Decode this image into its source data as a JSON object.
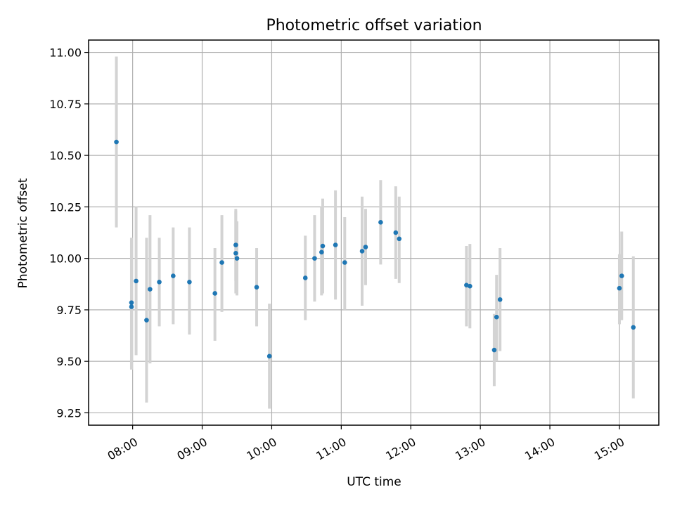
{
  "chart_data": {
    "type": "scatter",
    "title": "Photometric offset variation",
    "xlabel": "UTC time",
    "ylabel": "Photometric offset",
    "x_format": "HH:MM",
    "xlim": [
      "07:22",
      "15:34"
    ],
    "ylim": [
      9.19,
      11.06
    ],
    "x_ticks": [
      "08:00",
      "09:00",
      "10:00",
      "11:00",
      "12:00",
      "13:00",
      "14:00",
      "15:00"
    ],
    "y_ticks": [
      9.25,
      9.5,
      9.75,
      10.0,
      10.25,
      10.5,
      10.75,
      11.0
    ],
    "grid": true,
    "marker_color": "#1f77b4",
    "errorbar_color": "#d3d3d3",
    "points": [
      {
        "x": "07:46",
        "y": 10.565,
        "err_low": 10.15,
        "err_high": 10.98
      },
      {
        "x": "07:59",
        "y": 9.785,
        "err_low": 9.46,
        "err_high": 10.1
      },
      {
        "x": "07:59",
        "y": 9.765,
        "err_low": 9.5,
        "err_high": 10.05
      },
      {
        "x": "08:03",
        "y": 9.89,
        "err_low": 9.53,
        "err_high": 10.25
      },
      {
        "x": "08:12",
        "y": 9.7,
        "err_low": 9.3,
        "err_high": 10.1
      },
      {
        "x": "08:15",
        "y": 9.85,
        "err_low": 9.49,
        "err_high": 10.21
      },
      {
        "x": "08:23",
        "y": 9.885,
        "err_low": 9.67,
        "err_high": 10.1
      },
      {
        "x": "08:35",
        "y": 9.915,
        "err_low": 9.68,
        "err_high": 10.15
      },
      {
        "x": "08:49",
        "y": 9.885,
        "err_low": 9.63,
        "err_high": 10.15
      },
      {
        "x": "09:11",
        "y": 9.83,
        "err_low": 9.6,
        "err_high": 10.05
      },
      {
        "x": "09:17",
        "y": 9.98,
        "err_low": 9.74,
        "err_high": 10.21
      },
      {
        "x": "09:29",
        "y": 10.065,
        "err_low": 9.89,
        "err_high": 10.24
      },
      {
        "x": "09:29",
        "y": 10.025,
        "err_low": 9.83,
        "err_high": 10.23
      },
      {
        "x": "09:30",
        "y": 10.0,
        "err_low": 9.82,
        "err_high": 10.18
      },
      {
        "x": "09:47",
        "y": 9.86,
        "err_low": 9.67,
        "err_high": 10.05
      },
      {
        "x": "09:58",
        "y": 9.525,
        "err_low": 9.27,
        "err_high": 9.78
      },
      {
        "x": "10:29",
        "y": 9.905,
        "err_low": 9.7,
        "err_high": 10.11
      },
      {
        "x": "10:37",
        "y": 10.0,
        "err_low": 9.79,
        "err_high": 10.21
      },
      {
        "x": "10:43",
        "y": 10.03,
        "err_low": 9.82,
        "err_high": 10.25
      },
      {
        "x": "10:44",
        "y": 10.06,
        "err_low": 9.83,
        "err_high": 10.29
      },
      {
        "x": "10:55",
        "y": 10.065,
        "err_low": 9.8,
        "err_high": 10.33
      },
      {
        "x": "11:03",
        "y": 9.98,
        "err_low": 9.75,
        "err_high": 10.2
      },
      {
        "x": "11:18",
        "y": 10.035,
        "err_low": 9.77,
        "err_high": 10.3
      },
      {
        "x": "11:21",
        "y": 10.055,
        "err_low": 9.87,
        "err_high": 10.24
      },
      {
        "x": "11:34",
        "y": 10.175,
        "err_low": 9.97,
        "err_high": 10.38
      },
      {
        "x": "11:47",
        "y": 10.125,
        "err_low": 9.9,
        "err_high": 10.35
      },
      {
        "x": "11:50",
        "y": 10.095,
        "err_low": 9.88,
        "err_high": 10.3
      },
      {
        "x": "12:48",
        "y": 9.87,
        "err_low": 9.67,
        "err_high": 10.06
      },
      {
        "x": "12:51",
        "y": 9.865,
        "err_low": 9.66,
        "err_high": 10.07
      },
      {
        "x": "13:12",
        "y": 9.555,
        "err_low": 9.38,
        "err_high": 9.73
      },
      {
        "x": "13:14",
        "y": 9.715,
        "err_low": 9.5,
        "err_high": 9.92
      },
      {
        "x": "13:17",
        "y": 9.8,
        "err_low": 9.55,
        "err_high": 10.05
      },
      {
        "x": "15:00",
        "y": 9.855,
        "err_low": 9.68,
        "err_high": 10.02
      },
      {
        "x": "15:02",
        "y": 9.915,
        "err_low": 9.7,
        "err_high": 10.13
      },
      {
        "x": "15:12",
        "y": 9.665,
        "err_low": 9.32,
        "err_high": 10.01
      }
    ]
  }
}
